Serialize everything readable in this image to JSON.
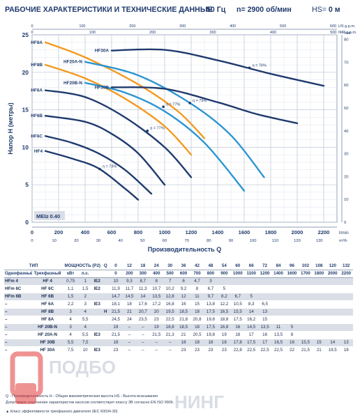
{
  "header": {
    "title": "РАБОЧИЕ ХАРАКТЕРИСТИКИ И ТЕХНИЧЕСКИЕ ДАННЫЕ",
    "frequency": "50 Гц",
    "speed": "n= 2900 об/мин",
    "hs_label": "HS=",
    "hs_value": "0 м"
  },
  "chart_data": {
    "type": "line",
    "xlabel": "Производительность Q",
    "ylabel": "Напор H (метры)",
    "x_unit": "l/min",
    "x_unit2": "m³/h",
    "y_unit_right": "feet",
    "us_gpm": "US g.p.m.",
    "imp_gpm": "IMP g.p.m.",
    "xlim": [
      0,
      2300
    ],
    "ylim": [
      0,
      25
    ],
    "x_ticks": [
      0,
      200,
      400,
      600,
      800,
      1000,
      1200,
      1400,
      1600,
      1800,
      2000,
      2200
    ],
    "y_ticks": [
      0,
      5,
      10,
      15,
      20,
      25
    ],
    "x2_ticks": [
      0,
      10,
      20,
      30,
      40,
      50,
      60,
      70,
      80,
      90,
      100,
      110,
      120,
      130
    ],
    "feet_ticks": [
      0,
      10,
      20,
      30,
      40,
      50,
      60,
      70,
      80
    ],
    "us_ticks": [
      0,
      100,
      200,
      300,
      400,
      500,
      600
    ],
    "imp_ticks": [
      0,
      100,
      200,
      300,
      400,
      500
    ],
    "mei": "MEI≥ 0.40",
    "series": [
      {
        "name": "HF4",
        "color": "#1f3a6d",
        "x": [
          100,
          300,
          500,
          700,
          800
        ],
        "y": [
          9.5,
          8.5,
          7.2,
          4.5,
          3.0
        ]
      },
      {
        "name": "HF6C",
        "color": "#1f3a6d",
        "x": [
          100,
          300,
          500,
          700,
          900
        ],
        "y": [
          11.5,
          10.6,
          9.2,
          7.0,
          3.8
        ]
      },
      {
        "name": "HF6B",
        "color": "#1f3a6d",
        "x": [
          100,
          400,
          600,
          800,
          1000
        ],
        "y": [
          14.2,
          13.4,
          11.8,
          9.2,
          5.0
        ]
      },
      {
        "name": "HF6A",
        "color": "#1f3a6d",
        "x": [
          100,
          400,
          700,
          1000,
          1200
        ],
        "y": [
          17.6,
          16.7,
          14.0,
          10.0,
          6.0
        ]
      },
      {
        "name": "HF8B",
        "color": "#f39a1e",
        "x": [
          100,
          400,
          700,
          1000,
          1200
        ],
        "y": [
          21.0,
          19.2,
          16.5,
          12.8,
          9.0
        ]
      },
      {
        "name": "HF8A",
        "color": "#f39a1e",
        "x": [
          100,
          400,
          800,
          1100,
          1300
        ],
        "y": [
          24.0,
          22.0,
          18.4,
          14.8,
          11.2
        ]
      },
      {
        "name": "HF20B-N",
        "color": "#2b95d1",
        "x": [
          400,
          700,
          1000,
          1300,
          1600
        ],
        "y": [
          18.6,
          17.3,
          14.8,
          10.6,
          4.2
        ]
      },
      {
        "name": "HF20A-N",
        "color": "#2b95d1",
        "x": [
          400,
          800,
          1200,
          1500,
          1750
        ],
        "y": [
          21.4,
          19.6,
          15.8,
          11.6,
          6.0
        ]
      },
      {
        "name": "HF30B",
        "color": "#1f3a6d",
        "x": [
          600,
          1000,
          1400,
          1700,
          2000
        ],
        "y": [
          18.0,
          17.8,
          16.0,
          14.4,
          13.2
        ]
      },
      {
        "name": "HF30A",
        "color": "#1f3a6d",
        "x": [
          600,
          1000,
          1400,
          1800,
          2200
        ],
        "y": [
          22.9,
          23.0,
          21.6,
          19.8,
          18.2
        ]
      }
    ],
    "efficiency_labels": [
      "η = 73%",
      "η = 77%",
      "η = 77%",
      "η = 79%",
      "η = 76%"
    ]
  },
  "table": {
    "head_row1": [
      "ТИП",
      "МОЩНОСТЬ (P2)",
      "Q"
    ],
    "head_units": [
      "м³/ч",
      "л/мин"
    ],
    "head_row2": [
      "Однофазный",
      "Трехфазный",
      "кВт",
      "л.с."
    ],
    "q_m3h": [
      "0",
      "12",
      "18",
      "24",
      "30",
      "36",
      "42",
      "48",
      "54",
      "60",
      "66",
      "72",
      "84",
      "96",
      "102",
      "108",
      "120",
      "132"
    ],
    "q_lmin": [
      "0",
      "200",
      "300",
      "400",
      "500",
      "600",
      "700",
      "800",
      "900",
      "1000",
      "1100",
      "1200",
      "1400",
      "1600",
      "1700",
      "1800",
      "2000",
      "2200"
    ],
    "h_label": "H метры",
    "rows": [
      {
        "single": "HFm 4",
        "three": "HF 4",
        "kw": "0,75",
        "hp": "1",
        "ie": "IE2",
        "h": [
          "10",
          "9,3",
          "8,7",
          "8",
          "7",
          "6",
          "4,7",
          "3",
          "",
          "",
          "",
          "",
          "",
          "",
          "",
          "",
          "",
          ""
        ]
      },
      {
        "single": "HFm 6C",
        "three": "HF 6C",
        "kw": "1,1",
        "hp": "1,5",
        "ie": "IE2",
        "h": [
          "11,9",
          "11,7",
          "11,3",
          "10,7",
          "10,2",
          "9,2",
          "8",
          "6,7",
          "5",
          "",
          "",
          "",
          "",
          "",
          "",
          "",
          "",
          ""
        ]
      },
      {
        "single": "HFm 6B",
        "three": "HF 6B",
        "kw": "1,5",
        "hp": "2",
        "ie": "",
        "h": [
          "14,7",
          "14,5",
          "14",
          "13,5",
          "12,8",
          "12",
          "11",
          "9,7",
          "8,2",
          "6,7",
          "5",
          "",
          "",
          "",
          "",
          "",
          "",
          ""
        ]
      },
      {
        "single": "–",
        "three": "HF 6A",
        "kw": "2,2",
        "hp": "3",
        "ie": "IE3",
        "h": [
          "18,1",
          "18",
          "17,6",
          "17,2",
          "16,8",
          "16",
          "15",
          "13,8",
          "12,2",
          "10,5",
          "8,3",
          "6,5",
          "",
          "",
          "",
          "",
          "",
          ""
        ]
      },
      {
        "single": "–",
        "three": "HF 8B",
        "kw": "3",
        "hp": "4",
        "ie": "",
        "h": [
          "21,5",
          "21",
          "20,7",
          "20",
          "19,5",
          "18,5",
          "18",
          "17,5",
          "16,5",
          "15,5",
          "14",
          "13",
          "",
          "",
          "",
          "",
          "",
          ""
        ]
      },
      {
        "single": "–",
        "three": "HF 8A",
        "kw": "4",
        "hp": "5,5",
        "ie": "",
        "h": [
          "24,5",
          "24",
          "23,5",
          "23",
          "22,5",
          "21,8",
          "20,8",
          "19,8",
          "18,8",
          "17,5",
          "16,2",
          "15",
          "",
          "",
          "",
          "",
          "",
          ""
        ]
      },
      {
        "single": "–",
        "three": "HF 20B-N",
        "kw": "3",
        "hp": "4",
        "ie": "",
        "h": [
          "19",
          "–",
          "–",
          "19",
          "18,8",
          "18,5",
          "18",
          "17,5",
          "16,8",
          "16",
          "14,5",
          "13,5",
          "11",
          "5",
          "",
          "",
          "",
          ""
        ]
      },
      {
        "single": "–",
        "three": "HF 20A-N",
        "kw": "4",
        "hp": "5,5",
        "ie": "IE3",
        "h": [
          "21,5",
          "–",
          "–",
          "21,5",
          "21,3",
          "21",
          "20,5",
          "19,8",
          "19",
          "18",
          "17",
          "16",
          "13,5",
          "8",
          "",
          "",
          "",
          ""
        ]
      },
      {
        "single": "–",
        "three": "HF 30B",
        "kw": "5,5",
        "hp": "7,5",
        "ie": "",
        "h": [
          "18",
          "–",
          "–",
          "–",
          "–",
          "18",
          "18",
          "18",
          "18",
          "17,8",
          "17,5",
          "17",
          "16,5",
          "16",
          "15,5",
          "15",
          "14",
          "13"
        ]
      },
      {
        "single": "–",
        "three": "HF 30A",
        "kw": "7,5",
        "hp": "10",
        "ie": "IE3",
        "h": [
          "23",
          "–",
          "–",
          "–",
          "–",
          "23",
          "23",
          "23",
          "23",
          "22,8",
          "22,5",
          "22,5",
          "22,5",
          "22",
          "21,5",
          "21",
          "19,5",
          "18"
        ]
      }
    ]
  },
  "footer": {
    "line1": "Q - Производительность   H - Общая манометрическая высота   HS - Высота всасывания",
    "line2": "Допустимое отклонение характеристик насосов соответствует классу 3B согласно EN ISO 9906.",
    "line3": "▲ Класс эффективности трехфазного двигателя (IEC 60034-30)"
  },
  "watermark": {
    "text1": "ПОДБО",
    "text2": "НИНГ"
  }
}
